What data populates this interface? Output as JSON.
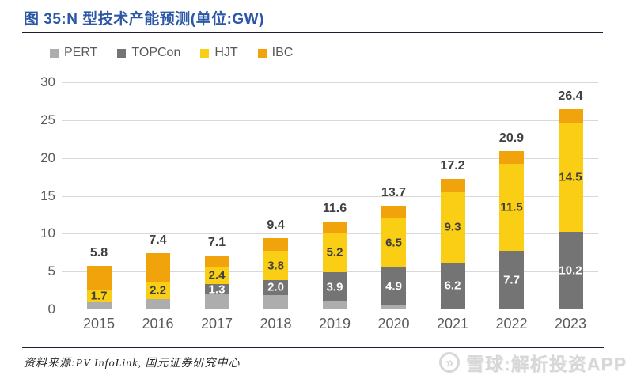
{
  "title": {
    "text": "图 35:N 型技术产能预测(单位:GW)"
  },
  "legend": {
    "items": [
      {
        "label": "PERT",
        "color": "#ADADAD"
      },
      {
        "label": "TOPCon",
        "color": "#747474"
      },
      {
        "label": "HJT",
        "color": "#F9CE14"
      },
      {
        "label": "IBC",
        "color": "#F0A30A"
      }
    ]
  },
  "chart_data": {
    "type": "bar",
    "stacked": true,
    "title": "N 型技术产能预测(单位:GW)",
    "categories": [
      "2015",
      "2016",
      "2017",
      "2018",
      "2019",
      "2020",
      "2021",
      "2022",
      "2023"
    ],
    "series": [
      {
        "name": "PERT",
        "color": "#ADADAD",
        "show_labels": false,
        "label_color": "#404040",
        "values": [
          0.9,
          1.4,
          2.0,
          1.9,
          1.0,
          0.6,
          0,
          0,
          0
        ]
      },
      {
        "name": "TOPCon",
        "color": "#747474",
        "show_labels": true,
        "label_color": "#FFFFFF",
        "values": [
          0,
          0,
          1.3,
          2.0,
          3.9,
          4.9,
          6.2,
          7.7,
          10.2
        ]
      },
      {
        "name": "HJT",
        "color": "#F9CE14",
        "show_labels": true,
        "label_color": "#3F3F3F",
        "values": [
          1.7,
          2.2,
          2.4,
          3.8,
          5.2,
          6.5,
          9.3,
          11.5,
          14.5
        ]
      },
      {
        "name": "IBC",
        "color": "#F0A30A",
        "show_labels": false,
        "label_color": "#404040",
        "values": [
          3.2,
          3.8,
          1.4,
          1.7,
          1.5,
          1.7,
          1.7,
          1.7,
          1.7
        ]
      }
    ],
    "totals": [
      5.8,
      7.4,
      7.1,
      9.4,
      11.6,
      13.7,
      17.2,
      20.9,
      26.4
    ],
    "y_ticks": [
      0,
      5,
      10,
      15,
      20,
      25,
      30
    ],
    "ylim": [
      0,
      30
    ],
    "grid": true,
    "legend_position": "top-left",
    "xlabel": "",
    "ylabel": ""
  },
  "source": {
    "text": "资料来源:PV InfoLink, 国元证券研究中心"
  },
  "watermark": {
    "text": "雪球:解析投资APP",
    "icon_glyph": "»"
  }
}
